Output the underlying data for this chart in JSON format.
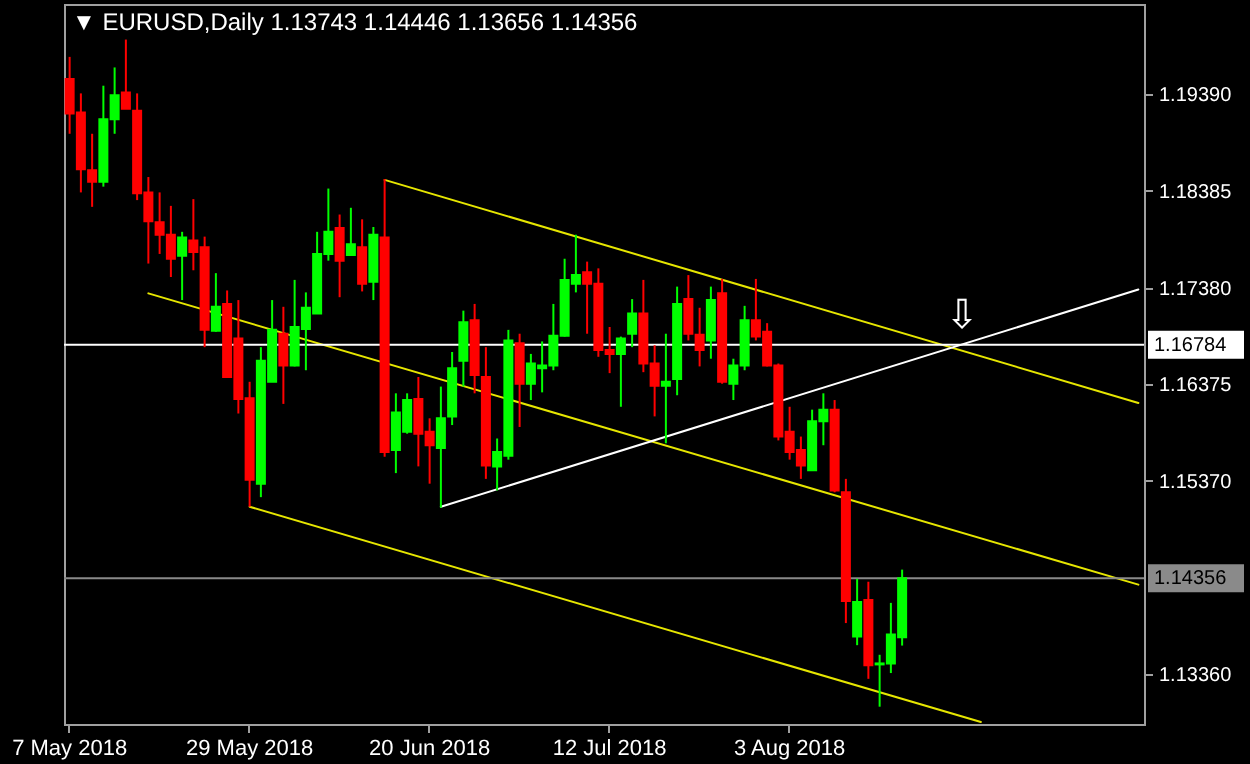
{
  "chart_data": {
    "type": "candlestick",
    "title": "▼ EURUSD,Daily  1.13743 1.14446 1.13656 1.14356",
    "categories": [
      "7 May 2018",
      null,
      null,
      null,
      null,
      null,
      null,
      null,
      null,
      null,
      null,
      null,
      null,
      null,
      null,
      null,
      "29 May 2018",
      null,
      null,
      null,
      null,
      null,
      null,
      null,
      null,
      null,
      null,
      null,
      null,
      null,
      null,
      null,
      "20 Jun 2018",
      null,
      null,
      null,
      null,
      null,
      null,
      null,
      null,
      null,
      null,
      null,
      null,
      null,
      null,
      null,
      "12 Jul 2018",
      null,
      null,
      null,
      null,
      null,
      null,
      null,
      null,
      null,
      null,
      null,
      null,
      null,
      null,
      null,
      "3 Aug 2018",
      null,
      null,
      null,
      null,
      null,
      null,
      null,
      null,
      null,
      null,
      null,
      null,
      null,
      null,
      null,
      null,
      null,
      null,
      null,
      null,
      null,
      null,
      null,
      null,
      null,
      null,
      null,
      null,
      null,
      null,
      null
    ],
    "ohlc": [
      [
        1.1955,
        1.1978,
        1.1898,
        1.1919
      ],
      [
        1.192,
        1.194,
        1.1837,
        1.1861
      ],
      [
        1.186,
        1.1898,
        1.1822,
        1.1848
      ],
      [
        1.1848,
        1.1948,
        1.1843,
        1.1913
      ],
      [
        1.1913,
        1.1967,
        1.1898,
        1.1938
      ],
      [
        1.1941,
        1.1996,
        1.1924,
        1.1924
      ],
      [
        1.1922,
        1.194,
        1.1829,
        1.1836
      ],
      [
        1.1837,
        1.1853,
        1.1763,
        1.1807
      ],
      [
        1.1806,
        1.1837,
        1.1773,
        1.1793
      ],
      [
        1.1793,
        1.1823,
        1.1749,
        1.1768
      ],
      [
        1.1771,
        1.1796,
        1.1725,
        1.179
      ],
      [
        1.1787,
        1.183,
        1.1756,
        1.1775
      ],
      [
        1.178,
        1.1791,
        1.1676,
        1.1694
      ],
      [
        1.1693,
        1.1753,
        1.1692,
        1.1718
      ],
      [
        1.1721,
        1.1735,
        1.1644,
        1.1645
      ],
      [
        1.1685,
        1.1725,
        1.1607,
        1.1622
      ],
      [
        1.1623,
        1.164,
        1.151,
        1.1538
      ],
      [
        1.1534,
        1.1676,
        1.152,
        1.1662
      ],
      [
        1.164,
        1.1725,
        1.164,
        1.1694
      ],
      [
        1.169,
        1.1718,
        1.1617,
        1.1657
      ],
      [
        1.1657,
        1.1746,
        1.1656,
        1.1697
      ],
      [
        1.1695,
        1.1733,
        1.1652,
        1.1717
      ],
      [
        1.1711,
        1.1796,
        1.1711,
        1.1773
      ],
      [
        1.1773,
        1.1841,
        1.1766,
        1.1796
      ],
      [
        1.18,
        1.1814,
        1.1728,
        1.1766
      ],
      [
        1.1772,
        1.1821,
        1.1772,
        1.1783
      ],
      [
        1.178,
        1.1809,
        1.1734,
        1.1742
      ],
      [
        1.1744,
        1.1801,
        1.1725,
        1.1793
      ],
      [
        1.179,
        1.1851,
        1.1562,
        1.1567
      ],
      [
        1.1569,
        1.1628,
        1.1545,
        1.1608
      ],
      [
        1.1588,
        1.1628,
        1.1586,
        1.1621
      ],
      [
        1.1622,
        1.1645,
        1.1552,
        1.1586
      ],
      [
        1.1588,
        1.1602,
        1.1534,
        1.1574
      ],
      [
        1.1571,
        1.1635,
        1.1509,
        1.1602
      ],
      [
        1.1604,
        1.1671,
        1.1595,
        1.1654
      ],
      [
        1.1662,
        1.1714,
        1.1635,
        1.1702
      ],
      [
        1.1704,
        1.1721,
        1.1628,
        1.1647
      ],
      [
        1.1645,
        1.1676,
        1.1539,
        1.1553
      ],
      [
        1.1552,
        1.1581,
        1.1527,
        1.1567
      ],
      [
        1.1563,
        1.1694,
        1.1559,
        1.1683
      ],
      [
        1.168,
        1.169,
        1.1593,
        1.1638
      ],
      [
        1.1638,
        1.1669,
        1.1621,
        1.1659
      ],
      [
        1.1654,
        1.1682,
        1.1629,
        1.1657
      ],
      [
        1.1657,
        1.1721,
        1.1652,
        1.1688
      ],
      [
        1.1688,
        1.1768,
        1.1687,
        1.1746
      ],
      [
        1.1742,
        1.1793,
        1.1733,
        1.1751
      ],
      [
        1.1754,
        1.1765,
        1.169,
        1.1742
      ],
      [
        1.1742,
        1.1758,
        1.1666,
        1.1673
      ],
      [
        1.1673,
        1.1697,
        1.1649,
        1.1669
      ],
      [
        1.1669,
        1.1687,
        1.1614,
        1.1685
      ],
      [
        1.169,
        1.1726,
        1.1676,
        1.1711
      ],
      [
        1.1711,
        1.1746,
        1.165,
        1.1659
      ],
      [
        1.1659,
        1.1678,
        1.1604,
        1.1636
      ],
      [
        1.1636,
        1.169,
        1.1576,
        1.164
      ],
      [
        1.1643,
        1.1739,
        1.1626,
        1.1721
      ],
      [
        1.1726,
        1.1751,
        1.1683,
        1.169
      ],
      [
        1.1689,
        1.1717,
        1.1656,
        1.1673
      ],
      [
        1.1683,
        1.1739,
        1.1664,
        1.1725
      ],
      [
        1.1732,
        1.1747,
        1.1638,
        1.164
      ],
      [
        1.1638,
        1.1664,
        1.1621,
        1.1657
      ],
      [
        1.1657,
        1.1719,
        1.1652,
        1.1704
      ],
      [
        1.1704,
        1.1747,
        1.1683,
        1.1687
      ],
      [
        1.1692,
        1.1701,
        1.1656,
        1.1657
      ],
      [
        1.1657,
        1.1659,
        1.1579,
        1.1583
      ],
      [
        1.1588,
        1.1614,
        1.1559,
        1.1567
      ],
      [
        1.1569,
        1.1583,
        1.1539,
        1.1553
      ],
      [
        1.1548,
        1.1611,
        1.1548,
        1.1599
      ],
      [
        1.1599,
        1.1628,
        1.1574,
        1.1611
      ],
      [
        1.1611,
        1.1621,
        1.1525,
        1.1527
      ],
      [
        1.1525,
        1.1539,
        1.1389,
        1.1412
      ],
      [
        1.1375,
        1.1435,
        1.1366,
        1.1411
      ],
      [
        1.1413,
        1.1432,
        1.1331,
        1.1345
      ],
      [
        1.1346,
        1.1356,
        1.1302,
        1.1347
      ],
      [
        1.1347,
        1.141,
        1.1337,
        1.1377
      ],
      [
        1.13743,
        1.14446,
        1.13656,
        1.14356
      ],
      null,
      null,
      null,
      null,
      null,
      null,
      null,
      null,
      null,
      null,
      null,
      null,
      null,
      null,
      null,
      null,
      null,
      null,
      null,
      null,
      null
    ],
    "colors": [
      "#ff0000",
      "#ff0000",
      "#ff0000",
      "#00ff00",
      "#00ff00",
      "#ff0000",
      "#ff0000",
      "#ff0000",
      "#ff0000",
      "#ff0000",
      "#00ff00",
      "#ff0000",
      "#ff0000",
      "#00ff00",
      "#ff0000",
      "#ff0000",
      "#ff0000",
      "#00ff00",
      "#00ff00",
      "#ff0000",
      "#00ff00",
      "#00ff00",
      "#00ff00",
      "#00ff00",
      "#ff0000",
      "#00ff00",
      "#ff0000",
      "#00ff00",
      "#ff0000",
      "#00ff00",
      "#00ff00",
      "#ff0000",
      "#ff0000",
      "#00ff00",
      "#00ff00",
      "#00ff00",
      "#ff0000",
      "#ff0000",
      "#00ff00",
      "#00ff00",
      "#ff0000",
      "#00ff00",
      "#00ff00",
      "#00ff00",
      "#00ff00",
      "#00ff00",
      "#ff0000",
      "#ff0000",
      "#ff0000",
      "#00ff00",
      "#00ff00",
      "#ff0000",
      "#ff0000",
      "#00ff00",
      "#00ff00",
      "#ff0000",
      "#ff0000",
      "#00ff00",
      "#ff0000",
      "#00ff00",
      "#00ff00",
      "#ff0000",
      "#ff0000",
      "#ff0000",
      "#ff0000",
      "#ff0000",
      "#00ff00",
      "#00ff00",
      "#ff0000",
      "#ff0000",
      "#00ff00",
      "#ff0000",
      "#00ff00",
      "#00ff00",
      "#00ff00",
      null,
      null,
      null,
      null,
      null,
      null,
      null,
      null,
      null,
      null,
      null,
      null,
      null,
      null,
      null,
      null,
      null,
      null,
      null,
      null,
      null
    ],
    "series": [
      {
        "type": "line",
        "color": "#e6e600",
        "values": [
          null,
          null,
          null,
          null,
          null,
          null,
          null,
          null,
          null,
          null,
          null,
          null,
          null,
          null,
          null,
          null,
          null,
          null,
          null,
          null,
          null,
          null,
          null,
          null,
          null,
          null,
          null,
          null,
          1.185,
          null,
          null,
          null,
          null,
          null,
          null,
          null,
          null,
          null,
          null,
          null,
          null,
          null,
          null,
          null,
          null,
          null,
          null,
          null,
          null,
          null,
          null,
          null,
          null,
          null,
          null,
          null,
          null,
          null,
          null,
          null,
          null,
          null,
          null,
          null,
          null,
          null,
          null,
          null,
          null,
          null,
          null,
          null,
          null,
          null,
          null,
          null,
          null,
          null,
          null,
          null,
          null,
          null,
          null,
          null,
          null,
          null,
          null,
          null,
          null,
          null,
          null,
          null,
          null,
          null,
          null,
          1.1618
        ]
      },
      {
        "type": "line",
        "color": "#e6e600",
        "values": [
          null,
          null,
          null,
          null,
          null,
          null,
          null,
          1.1732,
          null,
          null,
          null,
          null,
          null,
          null,
          null,
          null,
          null,
          null,
          null,
          null,
          null,
          null,
          null,
          null,
          null,
          null,
          null,
          null,
          null,
          null,
          null,
          null,
          null,
          null,
          null,
          null,
          null,
          null,
          null,
          null,
          null,
          null,
          null,
          null,
          null,
          null,
          null,
          null,
          null,
          null,
          null,
          null,
          null,
          null,
          null,
          null,
          null,
          null,
          null,
          null,
          null,
          null,
          null,
          null,
          null,
          null,
          null,
          null,
          null,
          null,
          null,
          null,
          null,
          null,
          null,
          null,
          null,
          null,
          null,
          null,
          null,
          null,
          null,
          null,
          null,
          null,
          null,
          null,
          null,
          null,
          null,
          null,
          null,
          null,
          null,
          1.1429
        ]
      },
      {
        "type": "line",
        "color": "#e6e600",
        "values": [
          null,
          null,
          null,
          null,
          null,
          null,
          null,
          null,
          null,
          null,
          null,
          null,
          null,
          null,
          null,
          null,
          1.151,
          null,
          null,
          null,
          null,
          null,
          null,
          null,
          null,
          null,
          null,
          null,
          null,
          null,
          null,
          null,
          null,
          null,
          null,
          null,
          null,
          null,
          null,
          null,
          null,
          null,
          null,
          null,
          null,
          null,
          null,
          null,
          null,
          null,
          null,
          null,
          null,
          null,
          null,
          null,
          null,
          null,
          null,
          null,
          null,
          null,
          null,
          null,
          null,
          null,
          null,
          null,
          null,
          null,
          null,
          null,
          null,
          null,
          null,
          null,
          null,
          null,
          null,
          null,
          null,
          1.1286,
          null,
          null,
          null,
          null,
          null,
          null,
          null,
          null,
          null,
          null,
          null,
          null,
          null,
          null
        ]
      },
      {
        "type": "line",
        "color": "#ffffff",
        "values": [
          null,
          null,
          null,
          null,
          null,
          null,
          null,
          null,
          null,
          null,
          null,
          null,
          null,
          null,
          null,
          null,
          null,
          null,
          null,
          null,
          null,
          null,
          null,
          null,
          null,
          null,
          null,
          null,
          null,
          null,
          null,
          null,
          null,
          1.151,
          null,
          null,
          null,
          null,
          null,
          null,
          null,
          null,
          null,
          null,
          null,
          null,
          null,
          null,
          null,
          null,
          null,
          null,
          null,
          null,
          null,
          null,
          null,
          null,
          null,
          null,
          null,
          null,
          null,
          null,
          null,
          null,
          null,
          null,
          null,
          null,
          null,
          null,
          null,
          null,
          null,
          null,
          null,
          null,
          null,
          null,
          null,
          null,
          null,
          null,
          null,
          null,
          null,
          null,
          null,
          null,
          null,
          null,
          null,
          null,
          null,
          1.1736
        ]
      }
    ],
    "ref_lines": [
      {
        "axis": "y",
        "value": 1.16784,
        "label": "1.16784",
        "color": "#ffffff"
      },
      {
        "axis": "y",
        "value": 1.14356,
        "label": "1.14356",
        "color": "#8a8a8a"
      }
    ],
    "annotations": [
      "⇩"
    ],
    "ylim": [
      1.1284,
      1.2033
    ],
    "yticks": [
      {
        "value": 1.1939,
        "label": "1.19390"
      },
      {
        "value": 1.18385,
        "label": "1.18385"
      },
      {
        "value": 1.1738,
        "label": "1.17380"
      },
      {
        "value": 1.16375,
        "label": "1.16375"
      },
      {
        "value": 1.1537,
        "label": "1.15370"
      },
      {
        "value": 1.1336,
        "label": "1.13360"
      }
    ],
    "grid": false
  }
}
